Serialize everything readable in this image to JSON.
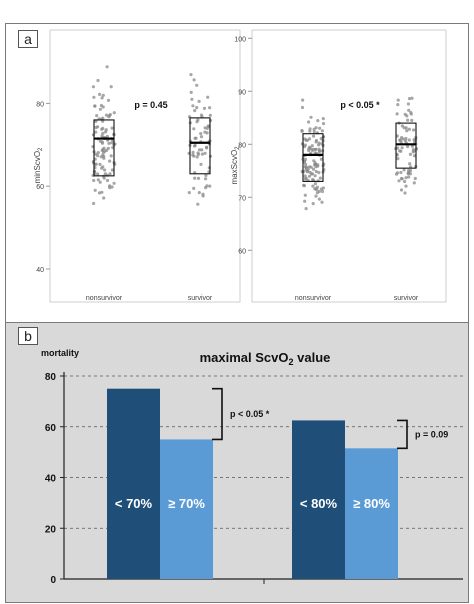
{
  "panels": {
    "a_label": "a",
    "b_label": "b"
  },
  "chart_data": [
    {
      "type": "box",
      "panel": "a",
      "title": "",
      "ylabel": "minScvO2",
      "ylabel_main": "minScvO",
      "ylabel_sub": "2",
      "xlabel": "",
      "ylim": [
        33,
        97
      ],
      "yticks": [
        40,
        60,
        80
      ],
      "categories": [
        "nonsurvivor",
        "survivor"
      ],
      "boxes": [
        {
          "name": "nonsurvivor",
          "q1": 62.5,
          "median": 71.5,
          "q3": 76
        },
        {
          "name": "survivor",
          "q1": 63,
          "median": 70.5,
          "q3": 76.5
        }
      ],
      "annotation": "p = 0.45",
      "grid": false
    },
    {
      "type": "box",
      "panel": "a",
      "title": "",
      "ylabel": "maxScvO2",
      "ylabel_main": "maxScvO",
      "ylabel_sub": "2",
      "xlabel": "",
      "ylim": [
        51,
        101
      ],
      "yticks": [
        60,
        70,
        80,
        90,
        100
      ],
      "categories": [
        "nonsurvivor",
        "survivor"
      ],
      "boxes": [
        {
          "name": "nonsurvivor",
          "q1": 73,
          "median": 78,
          "q3": 82
        },
        {
          "name": "survivor",
          "q1": 75.5,
          "median": 80,
          "q3": 84
        }
      ],
      "annotation": "p < 0.05 *",
      "grid": false
    },
    {
      "type": "bar",
      "panel": "b",
      "title": "maximal ScvO2 value",
      "title_main": "maximal ScvO",
      "title_sub": "2",
      "title_tail": " value",
      "ylabel": "mortality",
      "xlabel": "",
      "ylim": [
        0,
        80
      ],
      "yticks": [
        0,
        20,
        40,
        60,
        80
      ],
      "grid": true,
      "grid_style": "dashed horizontal",
      "groups": [
        {
          "bars": [
            {
              "label": "< 70%",
              "value": 75,
              "color": "#1f4e79"
            },
            {
              "label": "≥ 70%",
              "value": 55,
              "color": "#5b9bd5"
            }
          ],
          "annotation": "p < 0.05 *"
        },
        {
          "bars": [
            {
              "label": "< 80%",
              "value": 62.5,
              "color": "#1f4e79"
            },
            {
              "label": "≥ 80%",
              "value": 51.5,
              "color": "#5b9bd5"
            }
          ],
          "annotation": "p = 0.09"
        }
      ]
    }
  ]
}
